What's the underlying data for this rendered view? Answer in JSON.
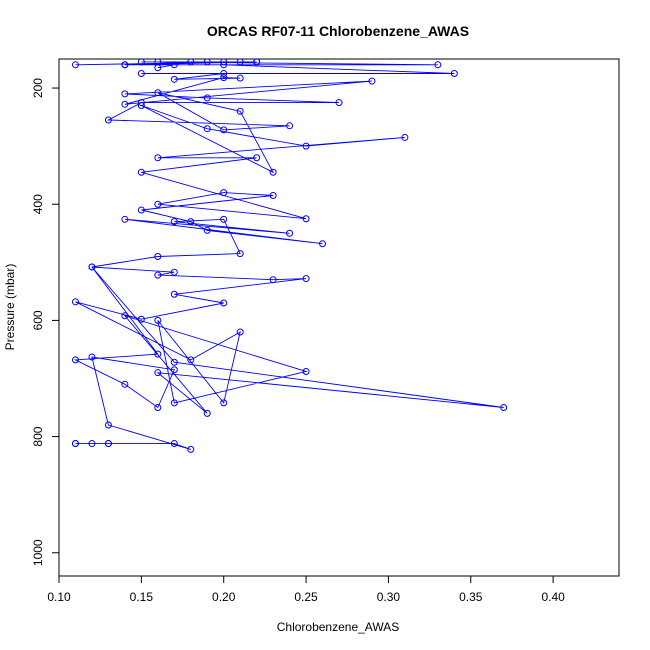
{
  "chart_data": {
    "type": "scatter",
    "title": "ORCAS RF07-11 Chlorobenzene_AWAS",
    "xlabel": "Chlorobenzene_AWAS",
    "ylabel": "Pressure (mbar)",
    "xlim": [
      0.1,
      0.44
    ],
    "ylim": [
      1040,
      150
    ],
    "y_reversed": true,
    "x_ticks": [
      0.1,
      0.15,
      0.2,
      0.25,
      0.3,
      0.35,
      0.4
    ],
    "x_tick_labels": [
      "0.10",
      "0.15",
      "0.20",
      "0.25",
      "0.30",
      "0.35",
      "0.40"
    ],
    "y_ticks": [
      200,
      400,
      600,
      800,
      1000
    ],
    "y_tick_labels": [
      "200",
      "400",
      "600",
      "800",
      "1000"
    ],
    "grid": false,
    "legend": "none",
    "series_color": "#0000ff",
    "series": [
      {
        "x": [
          0.11,
          0.11,
          0.12,
          0.13,
          0.13,
          0.17,
          0.18,
          0.13,
          0.12,
          0.17,
          0.16,
          0.14,
          0.11,
          0.16,
          0.12,
          0.17,
          0.37,
          0.16,
          0.19,
          0.14,
          0.25,
          0.17,
          0.16,
          0.2,
          0.21,
          0.18,
          0.11,
          0.15,
          0.2,
          0.17,
          0.25,
          0.23,
          0.16,
          0.17,
          0.12,
          0.16,
          0.21,
          0.2,
          0.17,
          0.24,
          0.14,
          0.26,
          0.19,
          0.18,
          0.15,
          0.23,
          0.2,
          0.16,
          0.25,
          0.15,
          0.22,
          0.16,
          0.31,
          0.25,
          0.19,
          0.15,
          0.23,
          0.21,
          0.16,
          0.2,
          0.24,
          0.13,
          0.15,
          0.27,
          0.19,
          0.14,
          0.29,
          0.14,
          0.2,
          0.21,
          0.17,
          0.2,
          0.15,
          0.34,
          0.2,
          0.17,
          0.14,
          0.33,
          0.16,
          0.15,
          0.22,
          0.19,
          0.2,
          0.21,
          0.11,
          0.22,
          0.14,
          0.18,
          0.16
        ],
        "y": [
          812,
          812,
          812,
          812,
          812,
          812,
          822,
          780,
          663,
          685,
          750,
          710,
          668,
          658,
          508,
          672,
          750,
          690,
          760,
          592,
          688,
          742,
          600,
          742,
          620,
          668,
          568,
          598,
          570,
          555,
          528,
          530,
          522,
          517,
          508,
          490,
          485,
          426,
          430,
          450,
          426,
          468,
          445,
          430,
          410,
          385,
          380,
          400,
          425,
          345,
          320,
          320,
          285,
          300,
          270,
          230,
          345,
          240,
          208,
          272,
          265,
          255,
          225,
          225,
          217,
          210,
          188,
          228,
          182,
          183,
          185,
          175,
          175,
          175,
          160,
          160,
          160,
          160,
          155,
          155,
          155,
          155,
          155,
          155,
          160,
          155,
          160,
          155,
          165
        ]
      }
    ]
  }
}
